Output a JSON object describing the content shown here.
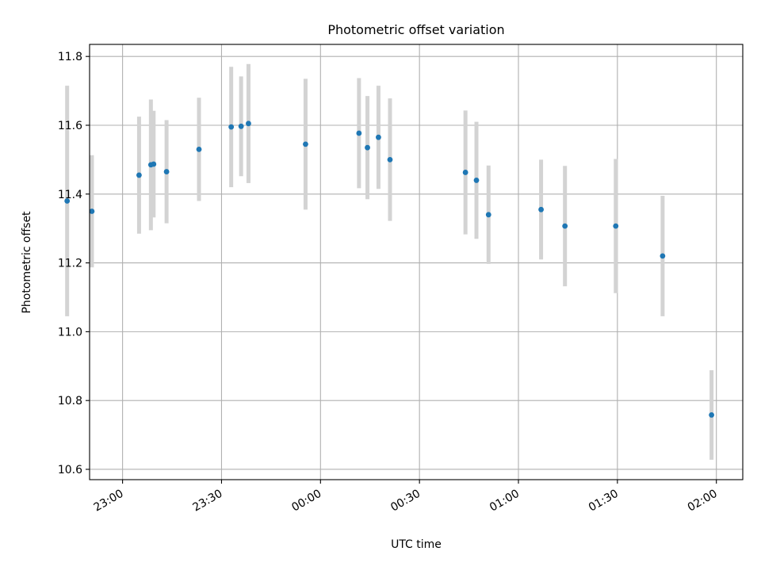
{
  "chart_data": {
    "type": "scatter",
    "title": "Photometric offset variation",
    "xlabel": "UTC time",
    "ylabel": "Photometric offset",
    "x_unit": "UTC HH:MM (times after midnight belong to the next day)",
    "xlim": [
      "22:50",
      "02:08"
    ],
    "ylim": [
      10.57,
      11.835
    ],
    "x_ticks": [
      "23:00",
      "23:30",
      "00:00",
      "00:30",
      "01:00",
      "01:30",
      "02:00"
    ],
    "y_ticks": [
      10.6,
      10.8,
      11.0,
      11.2,
      11.4,
      11.6,
      11.8
    ],
    "y_tick_labels": [
      "10.6",
      "10.8",
      "11.0",
      "11.2",
      "11.4",
      "11.6",
      "11.8"
    ],
    "grid": true,
    "legend": false,
    "colors": {
      "point": "#1f77b4",
      "errorbar": "#d3d3d3",
      "grid": "#b0b0b0",
      "axes": "#000000"
    },
    "series": [
      {
        "x": [
          "22:43:12",
          "22:50:42",
          "23:05:00",
          "23:08:35",
          "23:09:25",
          "23:13:20",
          "23:23:10",
          "23:32:56",
          "23:35:56",
          "23:38:10",
          "23:55:28",
          "00:11:40",
          "00:14:14",
          "00:17:34",
          "00:21:04",
          "00:43:56",
          "00:47:16",
          "00:50:56",
          "01:06:52",
          "01:14:06",
          "01:29:30",
          "01:43:42",
          "01:58:32"
        ],
        "y": [
          11.38,
          11.35,
          11.455,
          11.485,
          11.487,
          11.465,
          11.53,
          11.595,
          11.597,
          11.605,
          11.545,
          11.577,
          11.535,
          11.565,
          11.5,
          11.463,
          11.44,
          11.34,
          11.355,
          11.307,
          11.307,
          11.22,
          10.758
        ],
        "yerr": [
          0.335,
          0.163,
          0.17,
          0.19,
          0.155,
          0.15,
          0.15,
          0.175,
          0.145,
          0.173,
          0.19,
          0.16,
          0.15,
          0.15,
          0.178,
          0.18,
          0.17,
          0.143,
          0.145,
          0.175,
          0.195,
          0.175,
          0.13
        ]
      }
    ]
  }
}
